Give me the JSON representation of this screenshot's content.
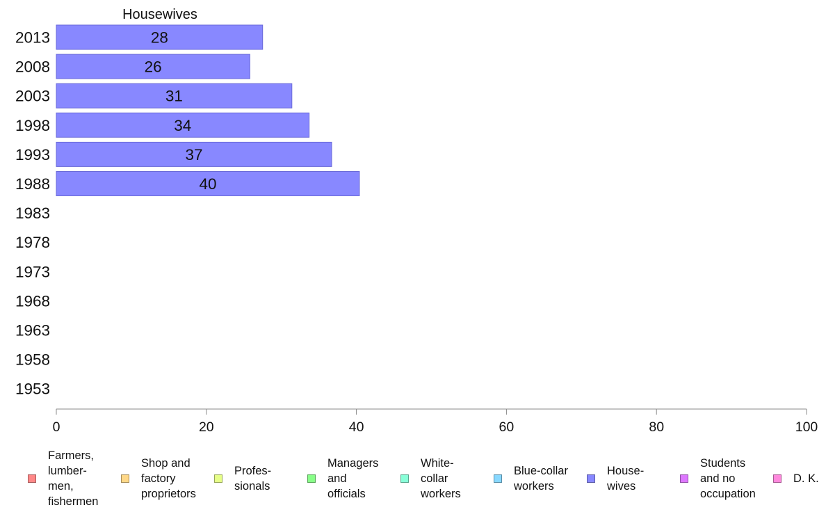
{
  "chart_data": {
    "type": "bar",
    "orientation": "horizontal",
    "title": "Housewives",
    "categories": [
      "2013",
      "2008",
      "2003",
      "1998",
      "1993",
      "1988",
      "1983",
      "1978",
      "1973",
      "1968",
      "1963",
      "1958",
      "1953"
    ],
    "series": [
      {
        "name": "Housewives",
        "color": "#8888ff",
        "values": [
          27.5,
          25.8,
          31.4,
          33.7,
          36.7,
          40.4,
          null,
          null,
          null,
          null,
          null,
          null,
          null
        ],
        "labels": [
          "28",
          "26",
          "31",
          "34",
          "37",
          "40",
          "",
          "",
          "",
          "",
          "",
          "",
          ""
        ]
      }
    ],
    "xlim": [
      0,
      100
    ],
    "xticks": [
      0,
      20,
      40,
      60,
      80,
      100
    ],
    "grid": false,
    "legend_position": "bottom"
  },
  "legend": [
    {
      "label": "Farmers,\nlumber-\nmen,\nfishermen",
      "color": "#ff8888"
    },
    {
      "label": "Shop and\nfactory\nproprietors",
      "color": "#ffd888"
    },
    {
      "label": "Profes-\nsionals",
      "color": "#e6ff88"
    },
    {
      "label": "Managers\nand\nofficials",
      "color": "#88ff88"
    },
    {
      "label": "White-\ncollar\nworkers",
      "color": "#88ffd8"
    },
    {
      "label": "Blue-collar\nworkers",
      "color": "#88d8ff"
    },
    {
      "label": "House-\nwives",
      "color": "#8888ff"
    },
    {
      "label": "Students\nand no\noccupation",
      "color": "#dd77ff"
    },
    {
      "label": "D. K.",
      "color": "#ff88dd"
    }
  ]
}
